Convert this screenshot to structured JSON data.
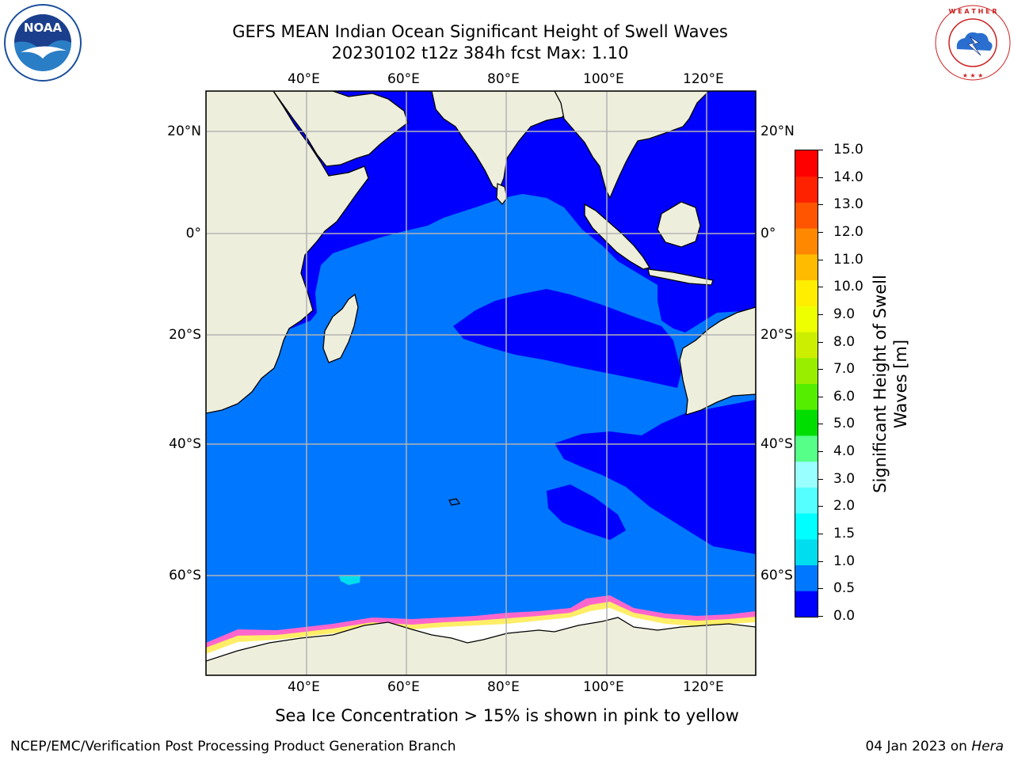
{
  "header": {
    "title_line1": "GEFS MEAN Indian Ocean Significant Height of Swell Waves",
    "title_line2": "20230102 t12z 384h fcst   Max: 1.10"
  },
  "logos": {
    "noaa": {
      "text": "NOAA",
      "ring_text": "NATIONAL OCEANIC AND ATMOSPHERIC ADMINISTRATION · U.S. DEPARTMENT OF COMMERCE"
    },
    "nws": {
      "ring_text": "NATIONAL WEATHER SERVICE"
    }
  },
  "map": {
    "longitude_ticks": [
      "40°E",
      "60°E",
      "80°E",
      "100°E",
      "120°E"
    ],
    "latitude_ticks_left": [
      "20°N",
      "0°",
      "20°S",
      "40°S",
      "60°S"
    ],
    "latitude_ticks_right": [
      "20°N",
      "0°",
      "20°S",
      "40°S",
      "60°S"
    ],
    "colors": {
      "land": "#eeeedd",
      "low_swell": "#0000ff",
      "mid_swell": "#0077ff",
      "ice_pink": "#ff66cc",
      "ice_yellow": "#ffee66",
      "ice_white": "#ffffff",
      "grid": "#b3b3b3"
    }
  },
  "colorbar": {
    "label": "Significant Height of Swell\nWaves [m]",
    "ticks": [
      "0.0",
      "0.5",
      "1.0",
      "1.5",
      "2.0",
      "3.0",
      "4.0",
      "5.0",
      "6.0",
      "7.0",
      "8.0",
      "9.0",
      "10.0",
      "11.0",
      "12.0",
      "13.0",
      "14.0",
      "15.0"
    ],
    "colors": [
      "#0000ff",
      "#0077ff",
      "#00ddee",
      "#00ffff",
      "#55ffff",
      "#99ffff",
      "#55ff88",
      "#00dd00",
      "#55ee00",
      "#99ee00",
      "#ccee00",
      "#eeff00",
      "#ffee00",
      "#ffbb00",
      "#ff8800",
      "#ff5500",
      "#ff2200",
      "#ff0000"
    ]
  },
  "footnote": "Sea Ice Concentration > 15% is shown in pink to yellow",
  "footer": {
    "left": "NCEP/EMC/Verification Post Processing Product Generation Branch",
    "right_prefix": "04 Jan 2023 on ",
    "right_host": "Hera"
  }
}
